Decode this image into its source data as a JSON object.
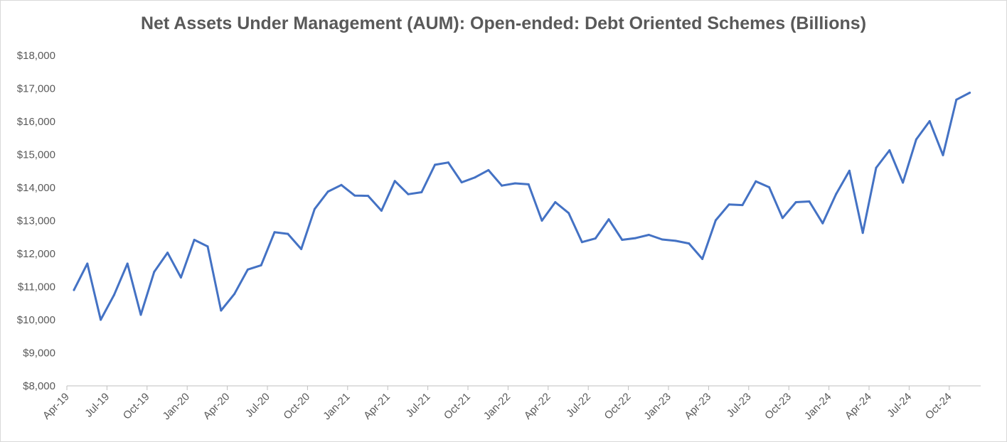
{
  "chart_data": {
    "type": "line",
    "title": "Net Assets Under Management (AUM): Open-ended: Debt Oriented Schemes (Billions)",
    "xlabel": "",
    "ylabel": "",
    "ylim": [
      8000,
      18000
    ],
    "y_ticks": [
      "$8,000",
      "$9,000",
      "$10,000",
      "$11,000",
      "$12,000",
      "$13,000",
      "$14,000",
      "$15,000",
      "$16,000",
      "$17,000",
      "$18,000"
    ],
    "x_tick_labels": [
      "Apr-19",
      "Jul-19",
      "Oct-19",
      "Jan-20",
      "Apr-20",
      "Jul-20",
      "Oct-20",
      "Jan-21",
      "Apr-21",
      "Jul-21",
      "Oct-21",
      "Jan-22",
      "Apr-22",
      "Jul-22",
      "Oct-22",
      "Jan-23",
      "Apr-23",
      "Jul-23",
      "Oct-23",
      "Jan-24",
      "Apr-24",
      "Jul-24",
      "Oct-24"
    ],
    "grid": false,
    "legend": "none",
    "line_color": "#4472c4",
    "series": [
      {
        "x": [
          "Apr-19",
          "May-19",
          "Jun-19",
          "Jul-19",
          "Aug-19",
          "Sep-19",
          "Oct-19",
          "Nov-19",
          "Dec-19",
          "Jan-20",
          "Feb-20",
          "Mar-20",
          "Apr-20",
          "May-20",
          "Jun-20",
          "Jul-20",
          "Aug-20",
          "Sep-20",
          "Oct-20",
          "Nov-20",
          "Dec-20",
          "Jan-21",
          "Feb-21",
          "Mar-21",
          "Apr-21",
          "May-21",
          "Jun-21",
          "Jul-21",
          "Aug-21",
          "Sep-21",
          "Oct-21",
          "Nov-21",
          "Dec-21",
          "Jan-22",
          "Feb-22",
          "Mar-22",
          "Apr-22",
          "May-22",
          "Jun-22",
          "Jul-22",
          "Aug-22",
          "Sep-22",
          "Oct-22",
          "Nov-22",
          "Dec-22",
          "Jan-23",
          "Feb-23",
          "Mar-23",
          "Apr-23",
          "May-23",
          "Jun-23",
          "Jul-23",
          "Aug-23",
          "Sep-23",
          "Oct-23",
          "Nov-23",
          "Dec-23",
          "Jan-24",
          "Feb-24",
          "Mar-24",
          "Apr-24",
          "May-24",
          "Jun-24",
          "Jul-24",
          "Aug-24",
          "Sep-24",
          "Oct-24",
          "Nov-24"
        ],
        "values": [
          10900,
          11700,
          10000,
          10750,
          11700,
          10150,
          11450,
          12030,
          11280,
          12420,
          12220,
          10280,
          10780,
          11520,
          11650,
          12650,
          12600,
          12140,
          13350,
          13880,
          14080,
          13760,
          13750,
          13300,
          14200,
          13800,
          13860,
          14690,
          14760,
          14160,
          14310,
          14530,
          14060,
          14130,
          14100,
          13000,
          13560,
          13230,
          12350,
          12460,
          13040,
          12420,
          12470,
          12570,
          12430,
          12390,
          12310,
          11840,
          13010,
          13490,
          13470,
          14190,
          14010,
          13080,
          13560,
          13580,
          12920,
          13800,
          14510,
          12630,
          14600,
          15130,
          14150,
          15460,
          16010,
          14980,
          16660,
          16870
        ]
      }
    ]
  }
}
